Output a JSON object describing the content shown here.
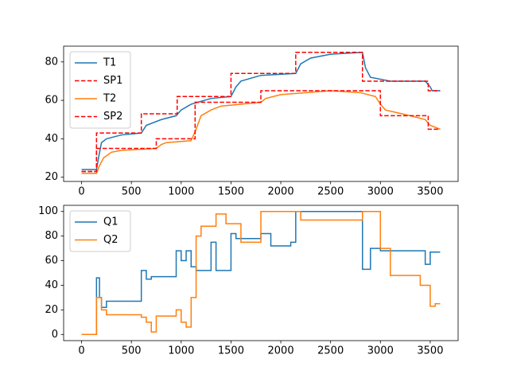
{
  "chart_data": [
    {
      "type": "line",
      "legend": "upper left",
      "xlim": [
        -180,
        3780
      ],
      "ylim": [
        17.8,
        88.2
      ],
      "xticks": [
        0,
        500,
        1000,
        1500,
        2000,
        2500,
        3000,
        3500
      ],
      "yticks": [
        20,
        40,
        60,
        80
      ],
      "series": [
        {
          "name": "T1",
          "color": "#1f77b4",
          "dashed": false,
          "x": [
            0,
            150,
            170,
            200,
            250,
            400,
            600,
            650,
            800,
            950,
            1000,
            1100,
            1300,
            1500,
            1550,
            1600,
            1800,
            2150,
            2200,
            2300,
            2500,
            2820,
            2850,
            2900,
            3100,
            3450,
            3500,
            3520,
            3600
          ],
          "values": [
            24,
            24,
            30,
            38,
            40,
            42,
            43,
            47,
            50,
            52,
            55,
            58,
            61,
            62,
            67,
            70,
            73,
            74,
            79,
            82,
            84,
            85,
            77,
            72,
            70,
            70,
            67,
            65,
            65
          ]
        },
        {
          "name": "SP1",
          "color": "#ff0000",
          "dashed": true,
          "x": [
            0,
            150,
            150,
            600,
            600,
            960,
            960,
            1500,
            1500,
            2150,
            2150,
            2820,
            2820,
            3480,
            3480,
            3600
          ],
          "values": [
            23,
            23,
            43,
            43,
            53,
            53,
            62,
            62,
            74,
            74,
            85,
            85,
            70,
            70,
            65,
            65
          ]
        },
        {
          "name": "T2",
          "color": "#ff7f0e",
          "dashed": false,
          "x": [
            0,
            150,
            180,
            220,
            300,
            400,
            750,
            800,
            850,
            1100,
            1150,
            1200,
            1300,
            1400,
            1800,
            1850,
            2000,
            2500,
            2800,
            2950,
            3000,
            3050,
            3300,
            3450,
            3500,
            3600
          ],
          "values": [
            22,
            22,
            26,
            30,
            33,
            34,
            35,
            37,
            38,
            39,
            45,
            52,
            55,
            57,
            59,
            61,
            63,
            65,
            64,
            62,
            58,
            55,
            52,
            50,
            47,
            45
          ]
        },
        {
          "name": "SP2",
          "color": "#ff0000",
          "dashed": true,
          "x": [
            0,
            150,
            150,
            750,
            750,
            1140,
            1140,
            1800,
            1800,
            3000,
            3000,
            3480,
            3480,
            3600
          ],
          "values": [
            23,
            23,
            35,
            35,
            40,
            40,
            59,
            59,
            65,
            65,
            52,
            52,
            45,
            45
          ]
        }
      ]
    },
    {
      "type": "line",
      "legend": "upper left",
      "xlim": [
        -180,
        3780
      ],
      "ylim": [
        -5,
        105
      ],
      "xticks": [
        0,
        500,
        1000,
        1500,
        2000,
        2500,
        3000,
        3500
      ],
      "yticks": [
        0,
        20,
        40,
        60,
        80,
        100
      ],
      "series": [
        {
          "name": "Q1",
          "color": "#1f77b4",
          "dashed": false,
          "x": [
            0,
            150,
            150,
            180,
            180,
            200,
            200,
            250,
            250,
            600,
            600,
            650,
            650,
            700,
            700,
            950,
            950,
            1000,
            1000,
            1050,
            1050,
            1100,
            1100,
            1150,
            1150,
            1300,
            1300,
            1350,
            1350,
            1500,
            1500,
            1550,
            1550,
            1800,
            1800,
            1900,
            1900,
            2100,
            2100,
            2150,
            2150,
            2820,
            2820,
            2900,
            2900,
            3000,
            3000,
            3450,
            3450,
            3500,
            3500,
            3600
          ],
          "values": [
            0,
            0,
            46,
            46,
            30,
            30,
            22,
            22,
            27,
            27,
            52,
            52,
            45,
            45,
            47,
            47,
            68,
            68,
            60,
            60,
            68,
            68,
            55,
            55,
            52,
            52,
            75,
            75,
            52,
            52,
            82,
            82,
            78,
            78,
            82,
            82,
            72,
            72,
            75,
            75,
            100,
            100,
            53,
            53,
            70,
            70,
            68,
            68,
            57,
            57,
            67,
            67
          ]
        },
        {
          "name": "Q2",
          "color": "#ff7f0e",
          "dashed": false,
          "x": [
            0,
            150,
            150,
            200,
            200,
            250,
            250,
            600,
            600,
            650,
            650,
            700,
            700,
            750,
            750,
            950,
            950,
            1000,
            1000,
            1050,
            1050,
            1100,
            1100,
            1150,
            1150,
            1200,
            1200,
            1350,
            1350,
            1450,
            1450,
            1600,
            1600,
            1800,
            1800,
            2200,
            2200,
            2820,
            2820,
            3000,
            3000,
            3100,
            3100,
            3400,
            3400,
            3500,
            3500,
            3550,
            3550,
            3600
          ],
          "values": [
            0,
            0,
            30,
            30,
            20,
            20,
            16,
            16,
            14,
            14,
            10,
            10,
            2,
            2,
            15,
            15,
            20,
            20,
            10,
            10,
            6,
            6,
            30,
            30,
            80,
            80,
            88,
            88,
            98,
            98,
            90,
            90,
            75,
            75,
            100,
            100,
            93,
            93,
            100,
            100,
            70,
            70,
            48,
            48,
            40,
            40,
            23,
            23,
            25,
            25
          ]
        }
      ]
    }
  ]
}
